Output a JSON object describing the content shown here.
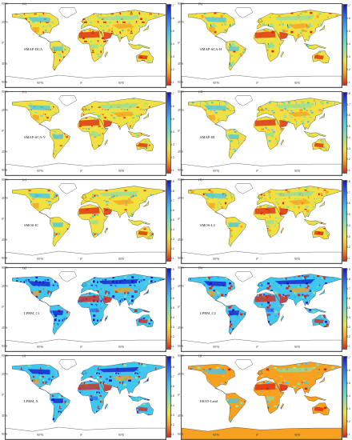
{
  "lat_labels": [
    "90°N",
    "45°N",
    "0°",
    "45°S",
    "90°S"
  ],
  "lon_labels": [
    "90°W",
    "0°",
    "90°E"
  ],
  "colormap": [
    "#1414c8",
    "#2b6df0",
    "#3fc7f0",
    "#8fe0a0",
    "#f0e040",
    "#f8a020",
    "#e02010"
  ],
  "panels": [
    {
      "id": "a",
      "letter": "(a)",
      "name": "SMAP-DCA",
      "ticks": [
        "0.7",
        "0.6",
        "0.5",
        "0.4",
        "0.3",
        "0.2",
        "0.1"
      ],
      "tint": "warm"
    },
    {
      "id": "b",
      "letter": "(b)",
      "name": "SMAP-SCA-H",
      "ticks": [
        "0.7",
        "0.6",
        "0.5",
        "0.4",
        "0.3",
        "0.2",
        "0.1"
      ],
      "tint": "warm"
    },
    {
      "id": "c",
      "letter": "(c)",
      "name": "SMAP-SCA-V",
      "ticks": [
        "0.7",
        "0.6",
        "0.5",
        "0.4",
        "0.3",
        "0.2",
        "0.1"
      ],
      "tint": "warm"
    },
    {
      "id": "d",
      "letter": "(d)",
      "name": "SMAP-IB",
      "ticks": [
        "0.8",
        "0.7",
        "0.6",
        "0.5",
        "0.4",
        "0.3",
        "0.2",
        "0.1"
      ],
      "tint": "warm"
    },
    {
      "id": "e",
      "letter": "(e)",
      "name": "SMOS-IC",
      "ticks": [
        "0.9",
        "0.8",
        "0.7",
        "0.6",
        "0.5",
        "0.4",
        "0.3",
        "0.2",
        "0.1"
      ],
      "tint": "warm"
    },
    {
      "id": "f",
      "letter": "(f)",
      "name": "SMOS-L3",
      "ticks": [
        "0.8",
        "0.7",
        "0.6",
        "0.5",
        "0.4",
        "0.3",
        "0.2",
        "0.1"
      ],
      "tint": "warm"
    },
    {
      "id": "g",
      "letter": "(g)",
      "name": "LPRM_C1",
      "ticks": [
        "0.9",
        "0.8",
        "0.7",
        "0.6",
        "0.5",
        "0.4",
        "0.3",
        "0.2",
        "0.1"
      ],
      "tint": "cool"
    },
    {
      "id": "h",
      "letter": "(h)",
      "name": "LPRM_C2",
      "ticks": [
        "0.9",
        "0.8",
        "0.7",
        "0.6",
        "0.5",
        "0.4",
        "0.3",
        "0.2",
        "0.1"
      ],
      "tint": "cool"
    },
    {
      "id": "i",
      "letter": "(i)",
      "name": "LPRM_X",
      "ticks": [
        "0.9",
        "0.8",
        "0.7",
        "0.6",
        "0.5",
        "0.4",
        "0.3",
        "0.2",
        "0.1"
      ],
      "tint": "cool"
    },
    {
      "id": "j",
      "letter": "(j)",
      "name": "ERA5-Land",
      "ticks": [
        "0.7",
        "0.6",
        "0.5",
        "0.4",
        "0.3",
        "0.2",
        "0.1"
      ],
      "tint": "era"
    }
  ]
}
